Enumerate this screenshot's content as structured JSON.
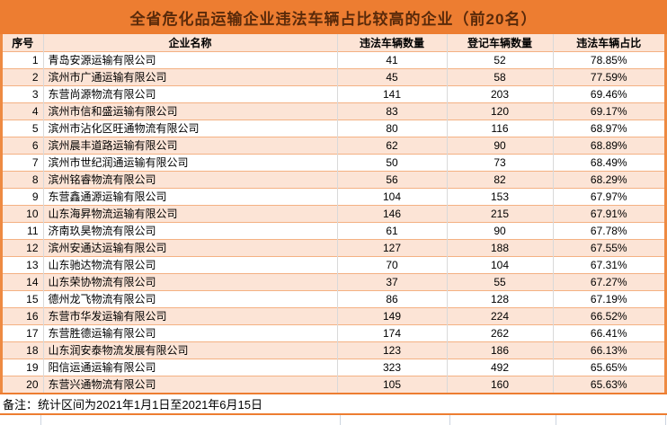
{
  "title": "全省危化品运输企业违法车辆占比较高的企业（前20名）",
  "note": "备注：统计区间为2021年1月1日至2021年6月15日",
  "colors": {
    "title_bar_bg": "#ED7D31",
    "title_text": "#5A2A0A",
    "stripe_fill": "#FCE4D6",
    "row_separator": "#F4B183",
    "column_separator": "#D9D9D9",
    "outer_border": "#EE8A42",
    "sheet_gridline": "#CDD5E0",
    "body_text": "#000000"
  },
  "table": {
    "headers": [
      "序号",
      "企业名称",
      "违法车辆数量",
      "登记车辆数量",
      "违法车辆占比"
    ],
    "rows": [
      [
        "1",
        "青岛安源运输有限公司",
        "41",
        "52",
        "78.85%"
      ],
      [
        "2",
        "滨州市广通运输有限公司",
        "45",
        "58",
        "77.59%"
      ],
      [
        "3",
        "东营尚源物流有限公司",
        "141",
        "203",
        "69.46%"
      ],
      [
        "4",
        "滨州市信和盛运输有限公司",
        "83",
        "120",
        "69.17%"
      ],
      [
        "5",
        "滨州市沾化区旺通物流有限公司",
        "80",
        "116",
        "68.97%"
      ],
      [
        "6",
        "滨州晨丰道路运输有限公司",
        "62",
        "90",
        "68.89%"
      ],
      [
        "7",
        "滨州市世纪润通运输有限公司",
        "50",
        "73",
        "68.49%"
      ],
      [
        "8",
        "滨州铭睿物流有限公司",
        "56",
        "82",
        "68.29%"
      ],
      [
        "9",
        "东营鑫通源运输有限公司",
        "104",
        "153",
        "67.97%"
      ],
      [
        "10",
        "山东海昇物流运输有限公司",
        "146",
        "215",
        "67.91%"
      ],
      [
        "11",
        "济南玖昊物流有限公司",
        "61",
        "90",
        "67.78%"
      ],
      [
        "12",
        "滨州安通达运输有限公司",
        "127",
        "188",
        "67.55%"
      ],
      [
        "13",
        "山东驰达物流有限公司",
        "70",
        "104",
        "67.31%"
      ],
      [
        "14",
        "山东荣协物流有限公司",
        "37",
        "55",
        "67.27%"
      ],
      [
        "15",
        "德州龙飞物流有限公司",
        "86",
        "128",
        "67.19%"
      ],
      [
        "16",
        "东营市华发运输有限公司",
        "149",
        "224",
        "66.52%"
      ],
      [
        "17",
        "东营胜德运输有限公司",
        "174",
        "262",
        "66.41%"
      ],
      [
        "18",
        "山东润安泰物流发展有限公司",
        "123",
        "186",
        "66.13%"
      ],
      [
        "19",
        "阳信运通运输有限公司",
        "323",
        "492",
        "65.65%"
      ],
      [
        "20",
        "东营兴通物流有限公司",
        "105",
        "160",
        "65.63%"
      ]
    ]
  },
  "grid_tail_column_x": [
    45,
    378,
    500,
    618,
    740
  ]
}
